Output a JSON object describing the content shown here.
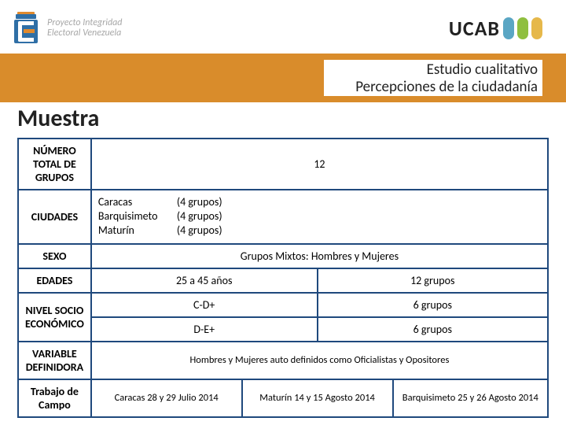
{
  "header": {
    "logo_left": {
      "line1": "Proyecto Integridad",
      "line2": "Electoral Venezuela"
    },
    "logo_right": {
      "text": "UCAB"
    }
  },
  "title_band": {
    "line1": "Estudio cualitativo",
    "line2": "Percepciones de la ciudadanía"
  },
  "section_heading": "Muestra",
  "table": {
    "rows": {
      "total_groups": {
        "label": "NÚMERO TOTAL DE GRUPOS",
        "value": "12"
      },
      "cities": {
        "label": "CIUDADES",
        "items": [
          {
            "city": "Caracas",
            "groups": "(4 grupos)"
          },
          {
            "city": "Barquisimeto",
            "groups": "(4 grupos)"
          },
          {
            "city": "Maturín",
            "groups": "(4 grupos)"
          }
        ]
      },
      "sex": {
        "label": "SEXO",
        "value": "Grupos Mixtos: Hombres y Mujeres"
      },
      "ages": {
        "label": "EDADES",
        "range": "25 a 45 años",
        "groups": "12 grupos"
      },
      "ses": {
        "label": "NIVEL SOCIO ECONÓMICO",
        "rows": [
          {
            "code": "C-D+",
            "groups": "6 grupos"
          },
          {
            "code": "D-E+",
            "groups": "6 grupos"
          }
        ]
      },
      "defining": {
        "label": "VARIABLE DEFINIDORA",
        "value": "Hombres y Mujeres auto definidos como Oficialistas y Opositores"
      },
      "fieldwork": {
        "label": "Trabajo de Campo",
        "cells": [
          "Caracas 28 y 29 Julio 2014",
          "Maturín 14 y 15 Agosto 2014",
          "Barquisimeto 25 y 26 Agosto 2014"
        ]
      }
    }
  },
  "colors": {
    "border": "#1f497d",
    "band": "#d98c2b",
    "text": "#222222",
    "logo_blue": "#2f6fa6",
    "logo_orange": "#e08a2e",
    "leaf_blue": "#5aa6c4",
    "leaf_green": "#8fbf3f",
    "leaf_gold": "#e6b84a"
  }
}
